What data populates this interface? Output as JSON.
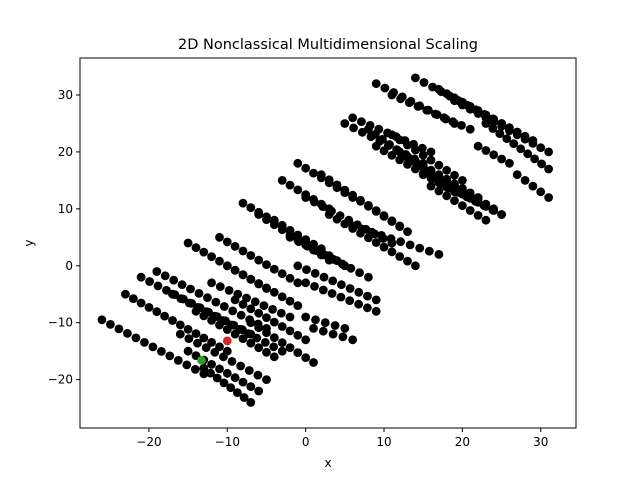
{
  "chart_data": {
    "type": "scatter",
    "title": "2D Nonclassical Multidimensional Scaling",
    "xlabel": "x",
    "ylabel": "y",
    "xlim": [
      -28.8,
      34.5
    ],
    "ylim": [
      -28.5,
      36.5
    ],
    "xticks": [
      -20,
      -10,
      0,
      10,
      20,
      30
    ],
    "yticks": [
      -20,
      -10,
      0,
      10,
      20,
      30
    ],
    "grid": false,
    "legend": "none",
    "colors": {
      "default": "#000000",
      "red": "#d62728",
      "green": "#2ca02c"
    },
    "highlights": [
      {
        "x": -10,
        "y": -13.2,
        "color": "red"
      },
      {
        "x": -13.3,
        "y": -16.6,
        "color": "green"
      }
    ],
    "bands": [
      {
        "x0": -26,
        "y0": -9.5,
        "x1": -13,
        "y1": -19
      },
      {
        "x0": -23,
        "y0": -5,
        "x1": -10,
        "y1": -15
      },
      {
        "x0": -21,
        "y0": -2,
        "x1": -7,
        "y1": -12
      },
      {
        "x0": -19,
        "y0": -1,
        "x1": -5,
        "y1": -11
      },
      {
        "x0": -17,
        "y0": -5,
        "x1": -3,
        "y1": -15
      },
      {
        "x0": -14,
        "y0": -8,
        "x1": -4,
        "y1": -16
      },
      {
        "x0": -16,
        "y0": -12,
        "x1": -5,
        "y1": -20
      },
      {
        "x0": -15,
        "y0": -15,
        "x1": -6,
        "y1": -22
      },
      {
        "x0": -13,
        "y0": -18,
        "x1": -7,
        "y1": -24
      },
      {
        "x0": -12,
        "y0": -3,
        "x1": -2,
        "y1": -9
      },
      {
        "x0": -15,
        "y0": 4,
        "x1": -5,
        "y1": -4
      },
      {
        "x0": -11,
        "y0": 5,
        "x1": -1,
        "y1": -3
      },
      {
        "x0": -10,
        "y0": 0,
        "x1": -1,
        "y1": -7
      },
      {
        "x0": -9,
        "y0": -6,
        "x1": 0,
        "y1": -13
      },
      {
        "x0": -7,
        "y0": -10,
        "x1": 1,
        "y1": -17
      },
      {
        "x0": -8,
        "y0": 11,
        "x1": 2,
        "y1": 3
      },
      {
        "x0": -6,
        "y0": 9,
        "x1": 3,
        "y1": 1
      },
      {
        "x0": -4,
        "y0": 8,
        "x1": 5,
        "y1": 0
      },
      {
        "x0": -2,
        "y0": 5,
        "x1": 8,
        "y1": -2
      },
      {
        "x0": -1,
        "y0": 0,
        "x1": 9,
        "y1": -6
      },
      {
        "x0": -3,
        "y0": 15,
        "x1": 3,
        "y1": 10
      },
      {
        "x0": -1,
        "y0": 18,
        "x1": 6,
        "y1": 12
      },
      {
        "x0": 0,
        "y0": 12,
        "x1": 11,
        "y1": 4
      },
      {
        "x0": 2,
        "y0": 16,
        "x1": 12,
        "y1": 7
      },
      {
        "x0": 3,
        "y0": 9,
        "x1": 14,
        "y1": 0
      },
      {
        "x0": 4,
        "y0": 14,
        "x1": 13,
        "y1": 6
      },
      {
        "x0": 6,
        "y0": 7,
        "x1": 17,
        "y1": 2
      },
      {
        "x0": 0,
        "y0": -9,
        "x1": 5,
        "y1": -11
      },
      {
        "x0": 0,
        "y0": -3,
        "x1": 9,
        "y1": -8
      },
      {
        "x0": 1,
        "y0": -11,
        "x1": 6,
        "y1": -13
      },
      {
        "x0": 5,
        "y0": 25,
        "x1": 15,
        "y1": 18
      },
      {
        "x0": 6,
        "y0": 26,
        "x1": 16,
        "y1": 20
      },
      {
        "x0": 8,
        "y0": 24,
        "x1": 17,
        "y1": 15
      },
      {
        "x0": 9,
        "y0": 21,
        "x1": 19,
        "y1": 13
      },
      {
        "x0": 11,
        "y0": 23,
        "x1": 20,
        "y1": 15
      },
      {
        "x0": 12,
        "y0": 20,
        "x1": 22,
        "y1": 12
      },
      {
        "x0": 13,
        "y0": 19,
        "x1": 24,
        "y1": 10
      },
      {
        "x0": 15,
        "y0": 16,
        "x1": 25,
        "y1": 9
      },
      {
        "x0": 16,
        "y0": 14,
        "x1": 23,
        "y1": 8
      },
      {
        "x0": 9,
        "y0": 32,
        "x1": 19,
        "y1": 25
      },
      {
        "x0": 11,
        "y0": 30,
        "x1": 21,
        "y1": 24
      },
      {
        "x0": 14,
        "y0": 33,
        "x1": 25,
        "y1": 25
      },
      {
        "x0": 17,
        "y0": 31,
        "x1": 29,
        "y1": 22
      },
      {
        "x0": 19,
        "y0": 29,
        "x1": 31,
        "y1": 20
      },
      {
        "x0": 23,
        "y0": 25,
        "x1": 31,
        "y1": 17
      },
      {
        "x0": 22,
        "y0": 21,
        "x1": 26,
        "y1": 18
      },
      {
        "x0": 27,
        "y0": 16,
        "x1": 31,
        "y1": 12
      },
      {
        "x0": 18,
        "y0": 14,
        "x1": 25,
        "y1": 9
      }
    ]
  }
}
